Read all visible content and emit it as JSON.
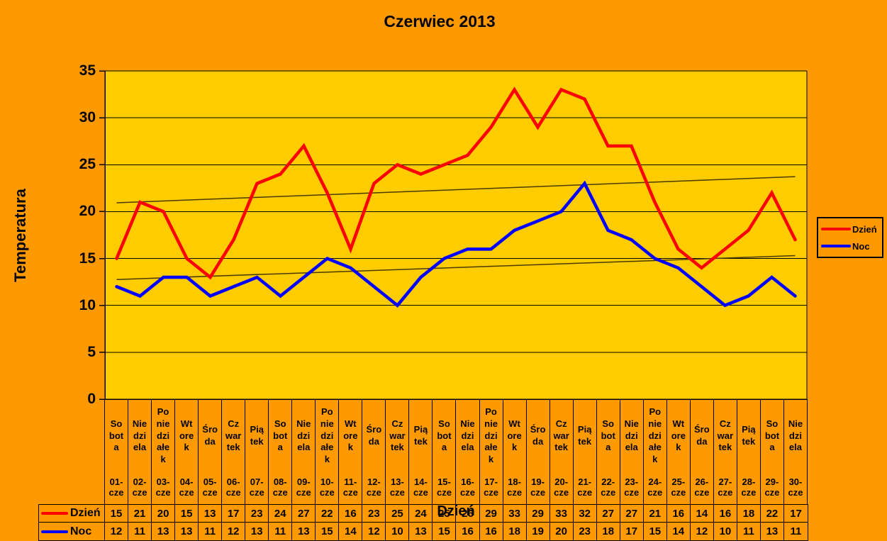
{
  "title": "Czerwiec 2013",
  "colors": {
    "page_background": "#FF9900",
    "plot_background": "#FFCC00",
    "grid_line": "#000000",
    "axis_line": "#000000",
    "trendline": "#4A3A00",
    "day_series": "#FF0000",
    "night_series": "#0000FF",
    "text": "#000000"
  },
  "y_axis": {
    "title": "Temperatura"
  },
  "x_axis": {
    "title": "Dzień"
  },
  "legend": {
    "position": "right",
    "items": [
      "Dzień",
      "Noc"
    ]
  },
  "chart_data": {
    "type": "line",
    "title": "Czerwiec 2013",
    "xlabel": "Dzień",
    "ylabel": "Temperatura",
    "ylim": [
      0,
      35
    ],
    "yticks": [
      0,
      5,
      10,
      15,
      20,
      25,
      30,
      35
    ],
    "grid": true,
    "legend_position": "right",
    "categories": [
      "Sobota",
      "Niedziela",
      "Poniedziałek",
      "Wtorek",
      "Środa",
      "Czwartek",
      "Piątek",
      "Sobota",
      "Niedziela",
      "Poniedziałek",
      "Wtorek",
      "Środa",
      "Czwartek",
      "Piątek",
      "Sobota",
      "Niedziela",
      "Poniedziałek",
      "Wtorek",
      "Środa",
      "Czwartek",
      "Piątek",
      "Sobota",
      "Niedziela",
      "Poniedziałek",
      "Wtorek",
      "Środa",
      "Czwartek",
      "Piątek",
      "Sobota",
      "Niedziela"
    ],
    "dates": [
      "01-cze",
      "02-cze",
      "03-cze",
      "04-cze",
      "05-cze",
      "06-cze",
      "07-cze",
      "08-cze",
      "09-cze",
      "10-cze",
      "11-cze",
      "12-cze",
      "13-cze",
      "14-cze",
      "15-cze",
      "16-cze",
      "17-cze",
      "18-cze",
      "19-cze",
      "20-cze",
      "21-cze",
      "22-cze",
      "23-cze",
      "24-cze",
      "25-cze",
      "26-cze",
      "27-cze",
      "28-cze",
      "29-cze",
      "30-cze"
    ],
    "category_display": {
      "day_lines": [
        "So\nbot\na",
        "Nie\ndzi\nela",
        "Po\nnie\ndzi\nałe\nk",
        "Wt\nore\nk",
        "Śro\nda",
        "Cz\nwar\ntek",
        "Pią\ntek",
        "So\nbot\na",
        "Nie\ndzi\nela",
        "Po\nnie\ndzi\nałe\nk",
        "Wt\nore\nk",
        "Śro\nda",
        "Cz\nwar\ntek",
        "Pią\ntek",
        "So\nbot\na",
        "Nie\ndzi\nela",
        "Po\nnie\ndzi\nałe\nk",
        "Wt\nore\nk",
        "Śro\nda",
        "Cz\nwar\ntek",
        "Pią\ntek",
        "So\nbot\na",
        "Nie\ndzi\nela",
        "Po\nnie\ndzi\nałe\nk",
        "Wt\nore\nk",
        "Śro\nda",
        "Cz\nwar\ntek",
        "Pią\ntek",
        "So\nbot\na",
        "Nie\ndzi\nela"
      ]
    },
    "series": [
      {
        "name": "Dzień",
        "color": "#FF0000",
        "values": [
          15,
          21,
          20,
          15,
          13,
          17,
          23,
          24,
          27,
          22,
          16,
          23,
          25,
          24,
          25,
          26,
          29,
          33,
          29,
          33,
          32,
          27,
          27,
          21,
          16,
          14,
          16,
          18,
          22,
          17
        ]
      },
      {
        "name": "Noc",
        "color": "#0000FF",
        "values": [
          12,
          11,
          13,
          13,
          11,
          12,
          13,
          11,
          13,
          15,
          14,
          12,
          10,
          13,
          15,
          16,
          16,
          18,
          19,
          20,
          23,
          18,
          17,
          15,
          14,
          12,
          10,
          11,
          13,
          11
        ]
      }
    ],
    "trendlines": [
      {
        "series": "Dzień",
        "type": "linear"
      },
      {
        "series": "Noc",
        "type": "linear"
      }
    ]
  }
}
